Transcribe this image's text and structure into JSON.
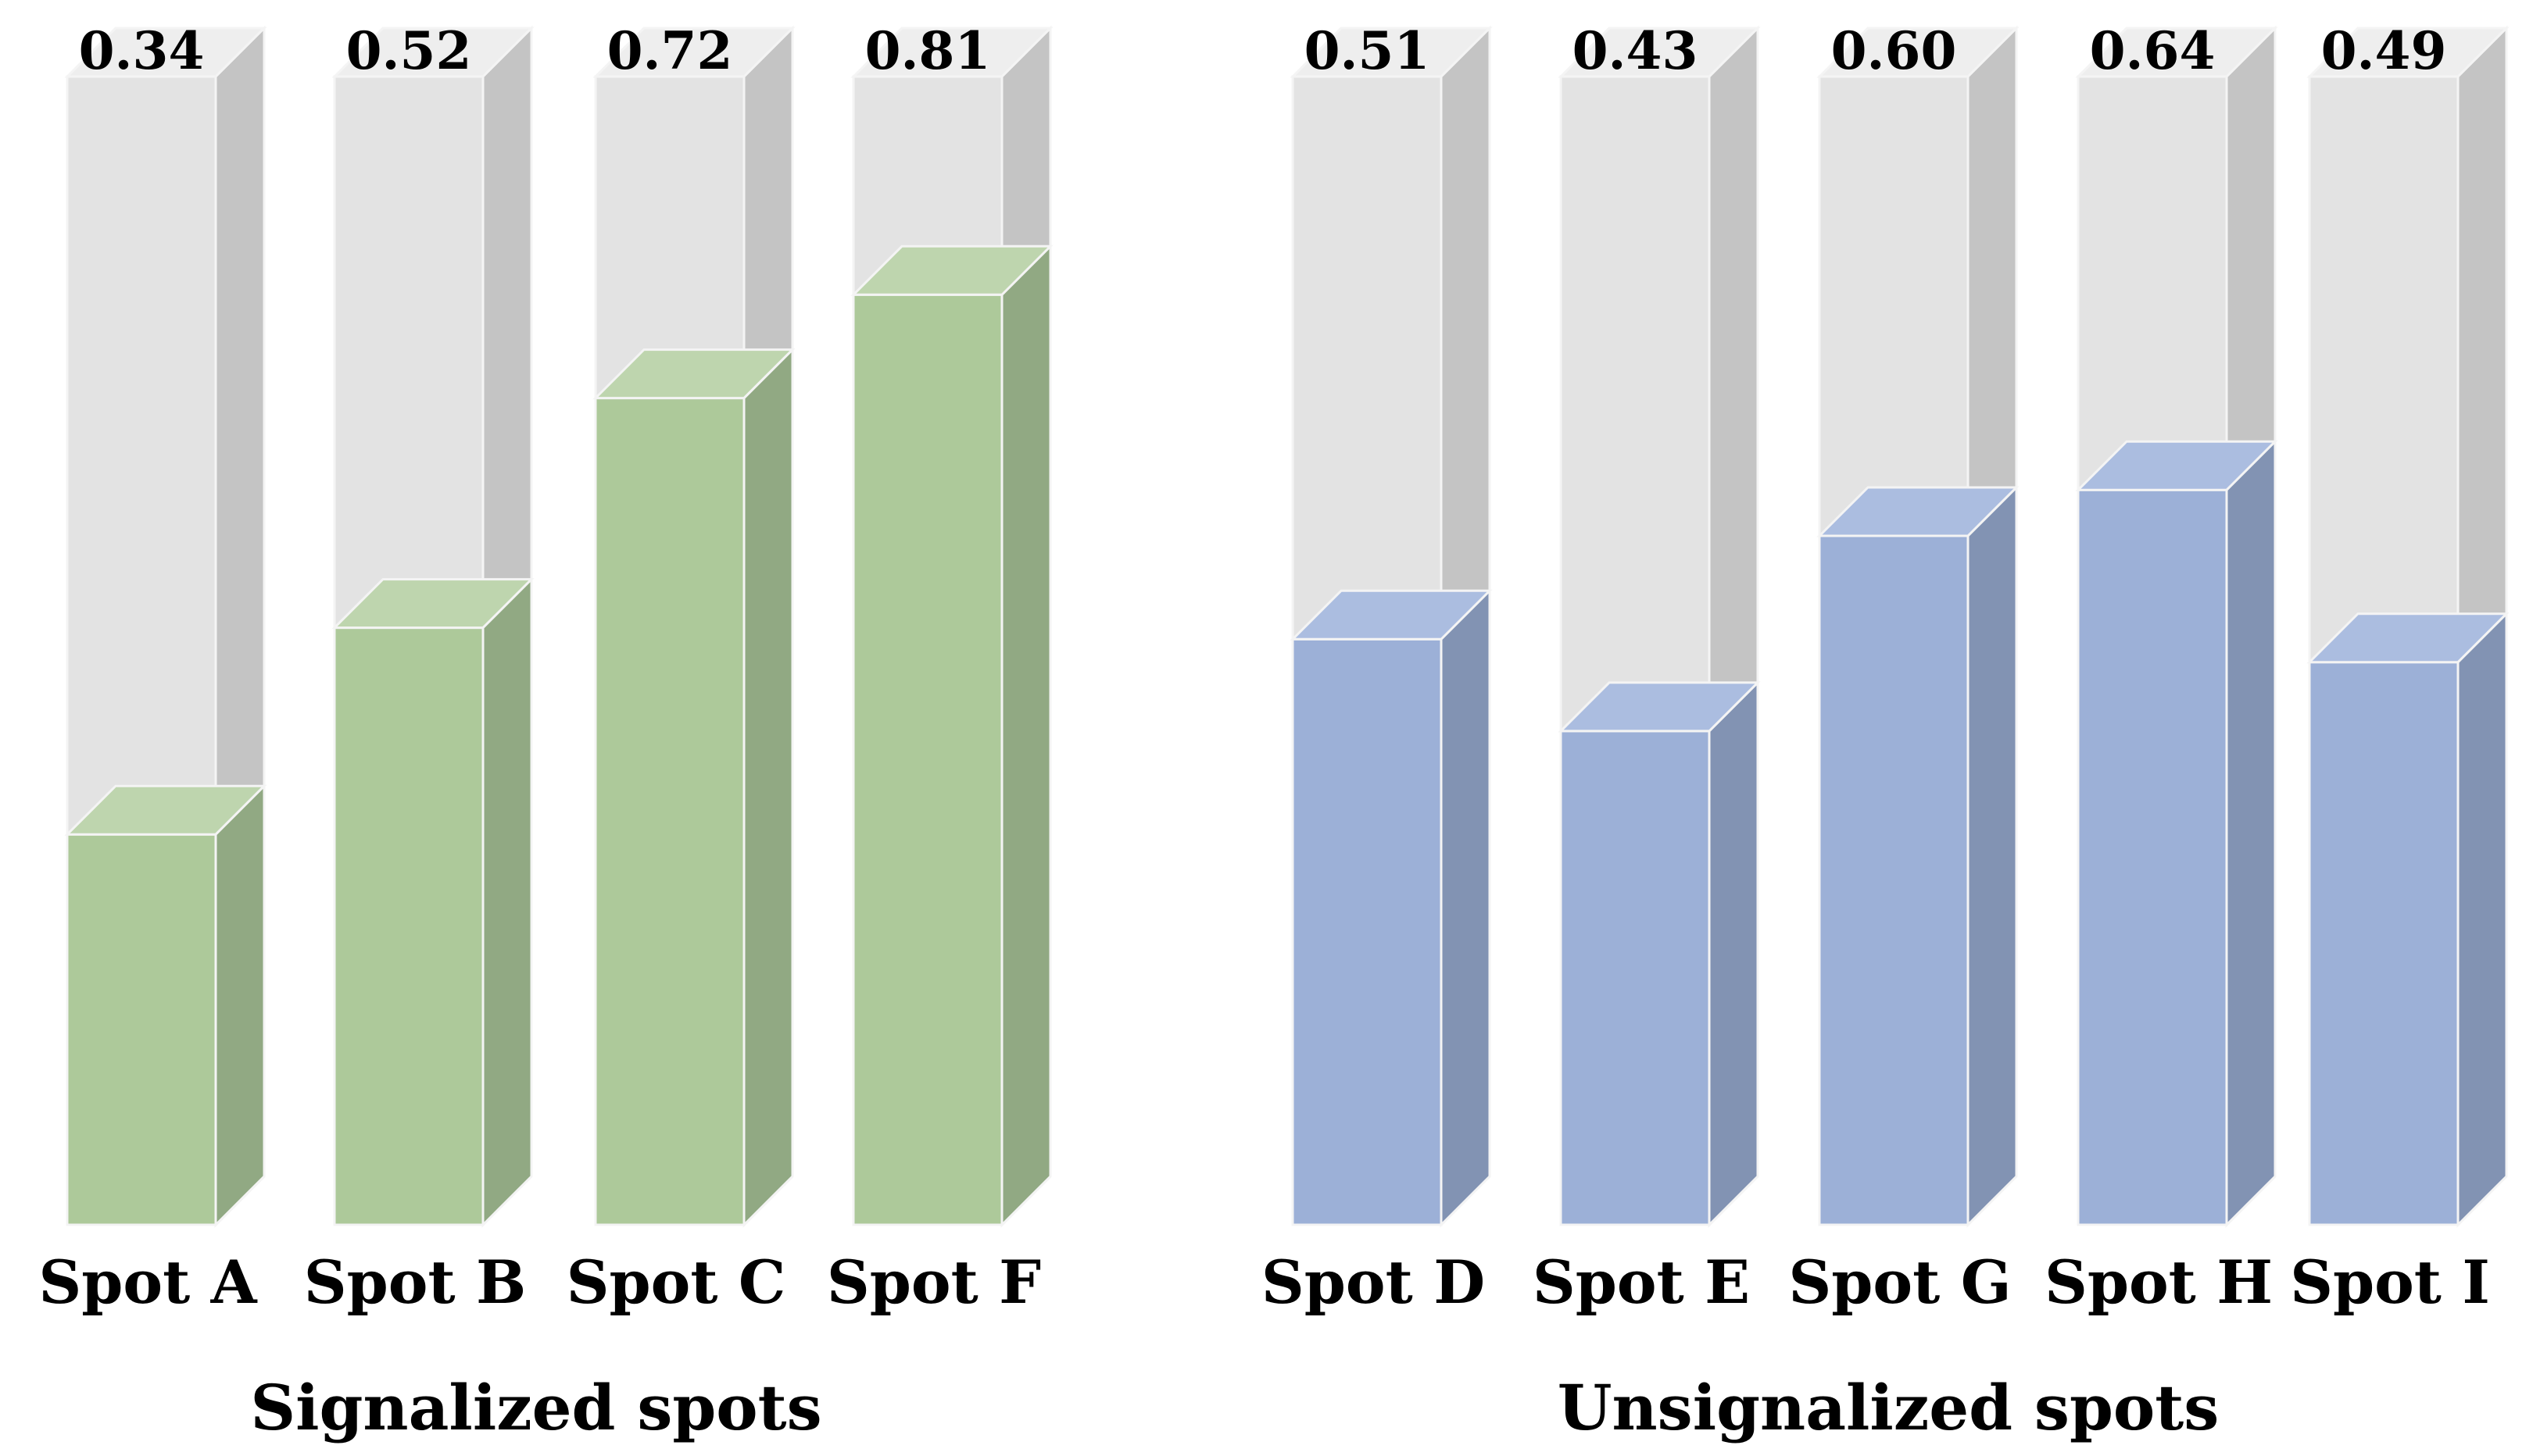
{
  "chart_data": [
    {
      "type": "bar",
      "style": "3d-column",
      "title": "Signalized spots",
      "categories": [
        "Spot A",
        "Spot B",
        "Spot C",
        "Spot F"
      ],
      "values": [
        0.34,
        0.52,
        0.72,
        0.81
      ],
      "value_labels": [
        "0.34",
        "0.52",
        "0.72",
        "0.81"
      ],
      "ylim": [
        0,
        1
      ],
      "grid": false,
      "color": "#adc99a"
    },
    {
      "type": "bar",
      "style": "3d-column",
      "title": "Unsignalized spots",
      "categories": [
        "Spot D",
        "Spot E",
        "Spot G",
        "Spot H",
        "Spot I"
      ],
      "values": [
        0.51,
        0.43,
        0.6,
        0.64,
        0.49
      ],
      "value_labels": [
        "0.51",
        "0.43",
        "0.60",
        "0.64",
        "0.49"
      ],
      "ylim": [
        0,
        1
      ],
      "grid": false,
      "color": "#9cb0d7"
    }
  ],
  "colors": {
    "track_front": "#e3e3e3",
    "track_side": "#c4c4c4",
    "track_top": "#eeeeee",
    "green_front": "#adc99a",
    "green_side": "#91a983",
    "green_top": "#bed5ae",
    "blue_front": "#9cb0d7",
    "blue_side": "#8293b3",
    "blue_top": "#abbde0",
    "edge": "#f4f4f4"
  }
}
